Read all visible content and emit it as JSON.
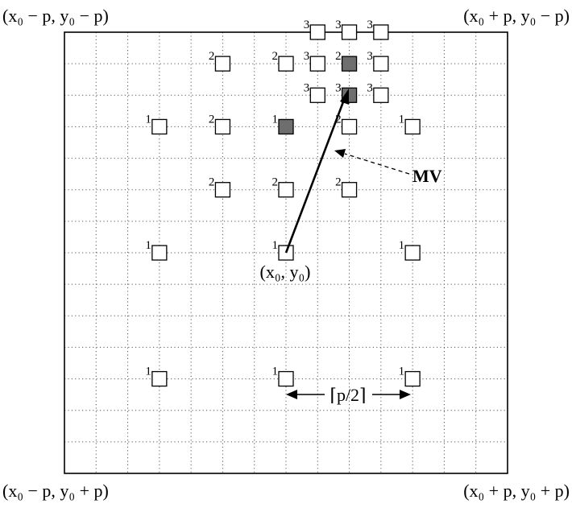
{
  "corners": {
    "top_left": "(x₀ − p, y₀ − p)",
    "top_right": "(x₀ + p, y₀ − p)",
    "bottom_left": "(x₀ − p, y₀ + p)",
    "bottom_right": "(x₀ + p, y₀ + p)"
  },
  "center_label": "(x₀, y₀)",
  "mv_label": "MV",
  "step_label": "⌈p/2⌉",
  "search_points": [
    {
      "step": "1",
      "col": 3,
      "row": 3,
      "selected": false
    },
    {
      "step": "1",
      "col": 7,
      "row": 3,
      "selected": true
    },
    {
      "step": "1",
      "col": 11,
      "row": 3,
      "selected": false
    },
    {
      "step": "1",
      "col": 3,
      "row": 7,
      "selected": false
    },
    {
      "step": "1",
      "col": 7,
      "row": 7,
      "selected": false
    },
    {
      "step": "1",
      "col": 11,
      "row": 7,
      "selected": false
    },
    {
      "step": "1",
      "col": 3,
      "row": 11,
      "selected": false
    },
    {
      "step": "1",
      "col": 7,
      "row": 11,
      "selected": false
    },
    {
      "step": "1",
      "col": 11,
      "row": 11,
      "selected": false
    },
    {
      "step": "2",
      "col": 5,
      "row": 1,
      "selected": false
    },
    {
      "step": "2",
      "col": 7,
      "row": 1,
      "selected": false
    },
    {
      "step": "2",
      "col": 9,
      "row": 1,
      "selected": true
    },
    {
      "step": "2",
      "col": 5,
      "row": 3,
      "selected": false
    },
    {
      "step": "2",
      "col": 9,
      "row": 3,
      "selected": false
    },
    {
      "step": "2",
      "col": 5,
      "row": 5,
      "selected": false
    },
    {
      "step": "2",
      "col": 7,
      "row": 5,
      "selected": false
    },
    {
      "step": "2",
      "col": 9,
      "row": 5,
      "selected": false
    },
    {
      "step": "3",
      "col": 8,
      "row": 0,
      "selected": false
    },
    {
      "step": "3",
      "col": 9,
      "row": 0,
      "selected": false
    },
    {
      "step": "3",
      "col": 10,
      "row": 0,
      "selected": false
    },
    {
      "step": "3",
      "col": 8,
      "row": 1,
      "selected": false
    },
    {
      "step": "3",
      "col": 10,
      "row": 1,
      "selected": false
    },
    {
      "step": "3",
      "col": 8,
      "row": 2,
      "selected": false
    },
    {
      "step": "3",
      "col": 9,
      "row": 2,
      "selected": true
    },
    {
      "step": "3",
      "col": 10,
      "row": 2,
      "selected": false
    }
  ],
  "colors": {
    "selected_fill": "#6e6e6e",
    "grid_line": "#555555"
  }
}
